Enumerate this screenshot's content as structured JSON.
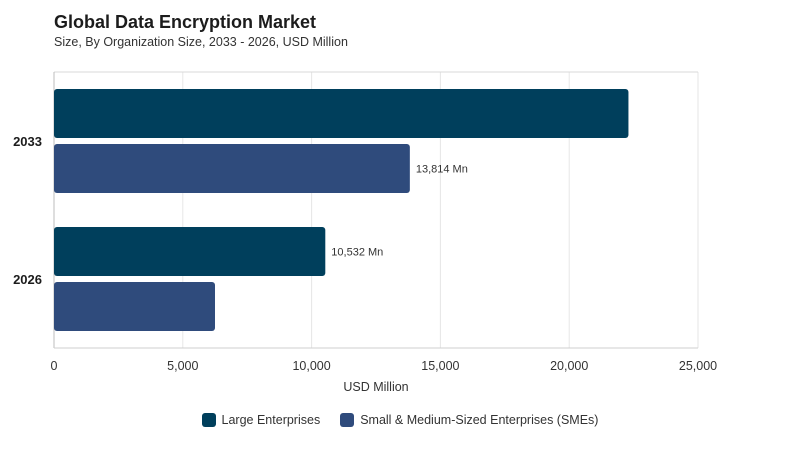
{
  "chart_data": {
    "type": "bar",
    "orientation": "horizontal",
    "title": "Global Data Encryption Market",
    "subtitle": "Size, By Organization Size, 2033 - 2026, USD Million",
    "xlabel": "USD Million",
    "ylabel": "",
    "categories": [
      "2033",
      "2026"
    ],
    "xlim": [
      0,
      25000
    ],
    "xticks": [
      0,
      5000,
      10000,
      15000,
      20000,
      25000
    ],
    "xtick_labels": [
      "0",
      "5,000",
      "10,000",
      "15,000",
      "20,000",
      "25,000"
    ],
    "grid": "vertical",
    "legend_position": "bottom",
    "series": [
      {
        "name": "Large Enterprises",
        "color": "#003f5c",
        "values": [
          22300,
          10532
        ],
        "data_labels": [
          "",
          "10,532 Mn"
        ]
      },
      {
        "name": "Small & Medium-Sized Enterprises (SMEs)",
        "color": "#2f4b7c",
        "values": [
          13814,
          6250
        ],
        "data_labels": [
          "13,814 Mn",
          ""
        ]
      }
    ]
  }
}
